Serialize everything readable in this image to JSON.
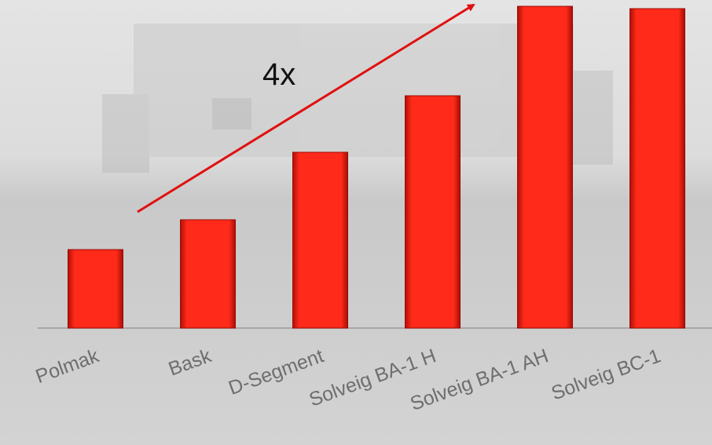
{
  "chart_data": {
    "type": "bar",
    "categories": [
      "Polmak",
      "Bask",
      "D-Segment",
      "Solveig BA-1 H",
      "Solveig BA-1 AH",
      "Solveig BC-1"
    ],
    "values": [
      1,
      1.38,
      2.24,
      2.96,
      4.1,
      4.07
    ],
    "color": "#ff2a1a",
    "ylim": [
      0,
      4.18
    ],
    "annotation": "4x"
  }
}
